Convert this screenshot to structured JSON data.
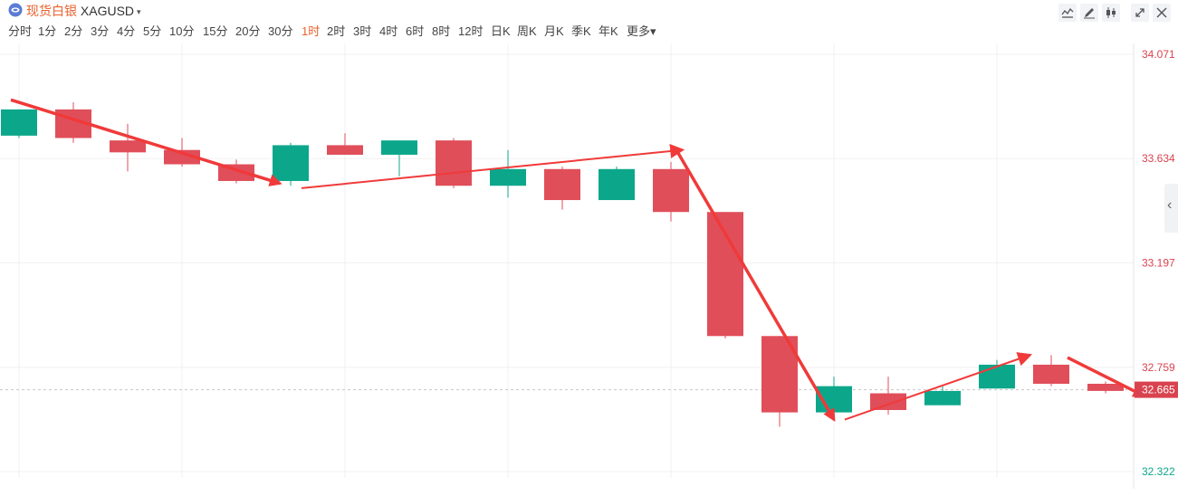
{
  "header": {
    "symbol_cn": "现货白银",
    "symbol_code": "XAGUSD",
    "caret": "▾"
  },
  "periods": [
    {
      "label": "分时",
      "active": false
    },
    {
      "label": "1分",
      "active": false
    },
    {
      "label": "2分",
      "active": false
    },
    {
      "label": "3分",
      "active": false
    },
    {
      "label": "4分",
      "active": false
    },
    {
      "label": "5分",
      "active": false
    },
    {
      "label": "10分",
      "active": false
    },
    {
      "label": "15分",
      "active": false
    },
    {
      "label": "20分",
      "active": false
    },
    {
      "label": "30分",
      "active": false
    },
    {
      "label": "1时",
      "active": true
    },
    {
      "label": "2时",
      "active": false
    },
    {
      "label": "3时",
      "active": false
    },
    {
      "label": "4时",
      "active": false
    },
    {
      "label": "6时",
      "active": false
    },
    {
      "label": "8时",
      "active": false
    },
    {
      "label": "12时",
      "active": false
    },
    {
      "label": "日K",
      "active": false
    },
    {
      "label": "周K",
      "active": false
    },
    {
      "label": "月K",
      "active": false
    },
    {
      "label": "季K",
      "active": false
    },
    {
      "label": "年K",
      "active": false
    },
    {
      "label": "更多▾",
      "active": false
    }
  ],
  "toolbar_icons": [
    "line-tool-icon",
    "draw-tool-icon",
    "candle-style-icon",
    "expand-icon",
    "close-icon"
  ],
  "side_tab_glyph": "‹",
  "colors": {
    "up": "#0ca78b",
    "down": "#e04e5a",
    "axis_red": "#d9434f",
    "axis_green": "#0ca78b",
    "grid": "#f0f0f0",
    "arrow": "#f03a3a",
    "accent": "#e8612c"
  },
  "chart_data": {
    "type": "candlestick",
    "ylim": [
      32.322,
      34.071
    ],
    "y_ticks": [
      "34.071",
      "33.634",
      "33.197",
      "32.759",
      "32.322"
    ],
    "y_tick_values": [
      34.071,
      33.634,
      33.197,
      32.759,
      32.322
    ],
    "y_tick_colors": [
      "red",
      "red",
      "red",
      "red",
      "green"
    ],
    "last_price": 32.665,
    "last_price_label": "32.665",
    "grid": true,
    "candles": [
      {
        "open": 33.73,
        "close": 33.84,
        "high": 33.84,
        "low": 33.72
      },
      {
        "open": 33.84,
        "close": 33.72,
        "high": 33.87,
        "low": 33.7
      },
      {
        "open": 33.71,
        "close": 33.66,
        "high": 33.78,
        "low": 33.58
      },
      {
        "open": 33.67,
        "close": 33.61,
        "high": 33.72,
        "low": 33.6
      },
      {
        "open": 33.61,
        "close": 33.54,
        "high": 33.63,
        "low": 33.53
      },
      {
        "open": 33.54,
        "close": 33.69,
        "high": 33.7,
        "low": 33.52
      },
      {
        "open": 33.69,
        "close": 33.65,
        "high": 33.74,
        "low": 33.65
      },
      {
        "open": 33.65,
        "close": 33.71,
        "high": 33.71,
        "low": 33.56
      },
      {
        "open": 33.71,
        "close": 33.52,
        "high": 33.72,
        "low": 33.51
      },
      {
        "open": 33.52,
        "close": 33.59,
        "high": 33.67,
        "low": 33.47
      },
      {
        "open": 33.59,
        "close": 33.46,
        "high": 33.6,
        "low": 33.42
      },
      {
        "open": 33.46,
        "close": 33.59,
        "high": 33.6,
        "low": 33.46
      },
      {
        "open": 33.59,
        "close": 33.41,
        "high": 33.62,
        "low": 33.37
      },
      {
        "open": 33.41,
        "close": 32.89,
        "high": 33.41,
        "low": 32.88
      },
      {
        "open": 32.89,
        "close": 32.57,
        "high": 32.89,
        "low": 32.51
      },
      {
        "open": 32.57,
        "close": 32.68,
        "high": 32.72,
        "low": 32.56
      },
      {
        "open": 32.65,
        "close": 32.58,
        "high": 32.72,
        "low": 32.56
      },
      {
        "open": 32.6,
        "close": 32.66,
        "high": 32.68,
        "low": 32.6
      },
      {
        "open": 32.67,
        "close": 32.77,
        "high": 32.79,
        "low": 32.67
      },
      {
        "open": 32.77,
        "close": 32.69,
        "high": 32.81,
        "low": 32.68
      },
      {
        "open": 32.69,
        "close": 32.66,
        "high": 32.7,
        "low": 32.65
      }
    ],
    "annotation_arrows": [
      {
        "from": [
          0,
          33.88
        ],
        "to": [
          4.8,
          33.53
        ],
        "thick": true
      },
      {
        "from": [
          5.2,
          33.51
        ],
        "to": [
          12.2,
          33.67
        ],
        "thick": false
      },
      {
        "from": [
          12.1,
          33.67
        ],
        "to": [
          15.0,
          32.54
        ],
        "thick": true
      },
      {
        "from": [
          15.2,
          32.54
        ],
        "to": [
          18.6,
          32.81
        ],
        "thick": false
      },
      {
        "from": [
          19.3,
          32.8
        ],
        "to": [
          20.7,
          32.64
        ],
        "thick": true
      }
    ]
  }
}
